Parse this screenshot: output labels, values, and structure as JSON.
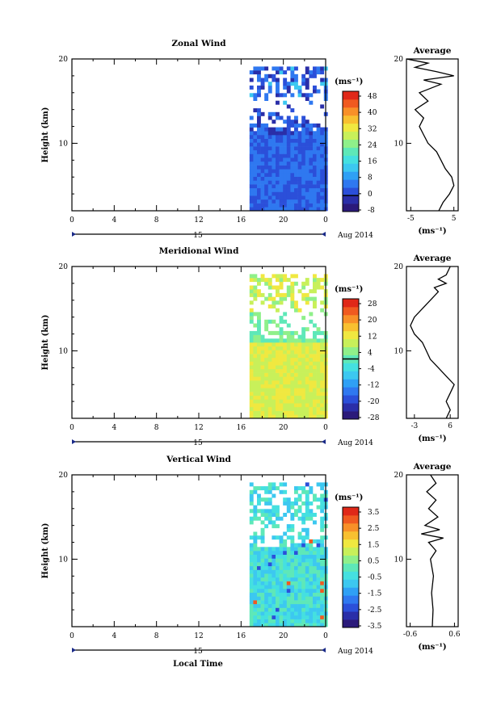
{
  "chart_data": [
    {
      "type": "heatmap",
      "title": "Zonal Wind",
      "ylabel": "Height (km)",
      "ylim": [
        2,
        20
      ],
      "yticks": [
        "10",
        "20"
      ],
      "xticks": [
        "0",
        "4",
        "8",
        "12",
        "16",
        "20",
        "0"
      ],
      "date_axis": {
        "day": "15",
        "label": "Aug 2014"
      },
      "colorbar": {
        "unit": "(ms⁻¹)",
        "ticks": [
          "48",
          "40",
          "32",
          "24",
          "16",
          "8",
          "0",
          "-8"
        ],
        "contour_level": "0"
      },
      "average": {
        "title": "Average",
        "xlabel": "(ms⁻¹)",
        "xticks": [
          "-5",
          "5"
        ],
        "xlim": [
          -6,
          6
        ],
        "yticks": [
          "10",
          "20"
        ],
        "profile": [
          [
            1.5,
            2
          ],
          [
            2.5,
            3
          ],
          [
            4,
            4
          ],
          [
            5,
            5
          ],
          [
            4.5,
            6
          ],
          [
            3,
            7
          ],
          [
            2,
            8
          ],
          [
            1,
            9
          ],
          [
            -1,
            10
          ],
          [
            -2,
            11
          ],
          [
            -3,
            12
          ],
          [
            -2,
            13
          ],
          [
            -4,
            14
          ],
          [
            -1,
            15
          ],
          [
            -3,
            16
          ],
          [
            2,
            17
          ],
          [
            -2,
            17.5
          ],
          [
            5,
            18
          ],
          [
            1,
            18.5
          ],
          [
            -4,
            19
          ],
          [
            -1,
            19.5
          ],
          [
            -6,
            20
          ]
        ]
      },
      "colors": {
        "contour": "#000000"
      }
    },
    {
      "type": "heatmap",
      "title": "Meridional Wind",
      "ylabel": "Height (km)",
      "ylim": [
        2,
        20
      ],
      "yticks": [
        "10",
        "20"
      ],
      "xticks": [
        "0",
        "4",
        "8",
        "12",
        "16",
        "20",
        "0"
      ],
      "date_axis": {
        "day": "15",
        "label": "Aug 2014"
      },
      "colorbar": {
        "unit": "(ms⁻¹)",
        "ticks": [
          "28",
          "20",
          "12",
          "4",
          "-4",
          "-12",
          "-20",
          "-28"
        ],
        "contour_level": "0"
      },
      "average": {
        "title": "Average",
        "xlabel": "(ms⁻¹)",
        "xticks": [
          "-3",
          "6"
        ],
        "xlim": [
          -5,
          8
        ],
        "yticks": [
          "10",
          "20"
        ],
        "profile": [
          [
            5,
            2
          ],
          [
            6,
            3
          ],
          [
            5,
            4
          ],
          [
            6,
            5
          ],
          [
            7,
            6
          ],
          [
            5,
            7
          ],
          [
            3,
            8
          ],
          [
            1,
            9
          ],
          [
            0,
            10
          ],
          [
            -1,
            11
          ],
          [
            -3,
            12
          ],
          [
            -4,
            13
          ],
          [
            -3,
            14
          ],
          [
            -1,
            15
          ],
          [
            1,
            16
          ],
          [
            3,
            17
          ],
          [
            2,
            17.5
          ],
          [
            5,
            18
          ],
          [
            3,
            18.5
          ],
          [
            5,
            19
          ],
          [
            6,
            20
          ]
        ]
      },
      "colors": {
        "contour": "#000000"
      }
    },
    {
      "type": "heatmap",
      "title": "Vertical Wind",
      "ylabel": "Height (km)",
      "ylim": [
        2,
        20
      ],
      "yticks": [
        "10",
        "20"
      ],
      "xticks": [
        "0",
        "4",
        "8",
        "12",
        "16",
        "20",
        "0"
      ],
      "date_axis": {
        "day": "15",
        "label": "Aug 2014"
      },
      "xlabel": "Local Time",
      "colorbar": {
        "unit": "(ms⁻¹)",
        "ticks": [
          "3.5",
          "2.5",
          "1.5",
          "0.5",
          "-0.5",
          "-1.5",
          "-2.5",
          "-3.5"
        ]
      },
      "average": {
        "title": "Average",
        "xlabel": "(ms⁻¹)",
        "xticks": [
          "-0.6",
          "0.6"
        ],
        "xlim": [
          -0.7,
          0.7
        ],
        "yticks": [
          "10",
          "20"
        ],
        "profile": [
          [
            0,
            2
          ],
          [
            0.02,
            4
          ],
          [
            -0.02,
            6
          ],
          [
            0.03,
            8
          ],
          [
            -0.05,
            10
          ],
          [
            0.1,
            11
          ],
          [
            -0.1,
            12
          ],
          [
            0.3,
            12.5
          ],
          [
            -0.3,
            13
          ],
          [
            0.2,
            13.5
          ],
          [
            -0.2,
            14
          ],
          [
            0.15,
            15
          ],
          [
            -0.1,
            16
          ],
          [
            0.1,
            17
          ],
          [
            -0.15,
            18
          ],
          [
            0.1,
            19
          ],
          [
            -0.05,
            20
          ]
        ]
      },
      "colors": {
        "contour": "#000000"
      }
    }
  ]
}
